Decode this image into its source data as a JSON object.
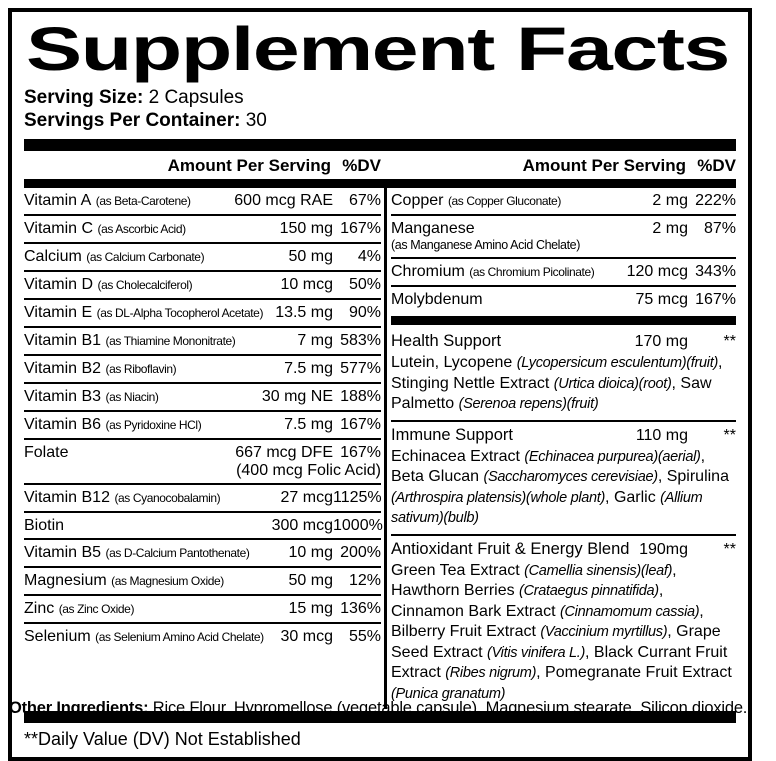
{
  "title": "Supplement Facts",
  "serving_size": {
    "label": "Serving Size:",
    "value": " 2 Capsules"
  },
  "servings_per_container": {
    "label": "Servings Per Container:",
    "value": " 30"
  },
  "column_header": {
    "amount": "Amount Per Serving",
    "dv": "%DV"
  },
  "left_column": {
    "rows": [
      {
        "name": "Vitamin A",
        "paren": "(as Beta-Carotene)",
        "amount": "600 mcg RAE",
        "dv": "67%"
      },
      {
        "name": "Vitamin C",
        "paren": "(as Ascorbic Acid)",
        "amount": "150 mg",
        "dv": "167%"
      },
      {
        "name": "Calcium",
        "paren": "(as Calcium Carbonate)",
        "amount": "50 mg",
        "dv": "4%"
      },
      {
        "name": "Vitamin D",
        "paren": "(as Cholecalciferol)",
        "amount": "10 mcg",
        "dv": "50%"
      },
      {
        "name": "Vitamin E",
        "paren": "(as DL-Alpha Tocopherol Acetate)",
        "amount": "13.5 mg",
        "dv": "90%"
      },
      {
        "name": "Vitamin B1",
        "paren": "(as Thiamine Mononitrate)",
        "amount": "7 mg",
        "dv": "583%"
      },
      {
        "name": "Vitamin B2",
        "paren": "(as Riboflavin)",
        "amount": "7.5 mg",
        "dv": "577%"
      },
      {
        "name": "Vitamin B3",
        "paren": "(as Niacin)",
        "amount": "30 mg NE",
        "dv": "188%"
      },
      {
        "name": "Vitamin B6",
        "paren": "(as Pyridoxine HCl)",
        "amount": "7.5 mg",
        "dv": "167%"
      },
      {
        "name": "Folate",
        "amount": "667 mcg DFE",
        "amount2": "(400 mcg Folic Acid)",
        "dv": "167%"
      },
      {
        "name": "Vitamin B12",
        "paren": "(as Cyanocobalamin)",
        "amount": "27 mcg",
        "dv": "1125%"
      },
      {
        "name": "Biotin",
        "amount": "300 mcg",
        "dv": "1000%"
      },
      {
        "name": "Vitamin B5",
        "paren": "(as D-Calcium Pantothenate)",
        "amount": "10 mg",
        "dv": "200%"
      },
      {
        "name": "Magnesium",
        "paren": "(as Magnesium Oxide)",
        "amount": "50 mg",
        "dv": "12%"
      },
      {
        "name": "Zinc",
        "paren": "(as Zinc Oxide)",
        "amount": "15 mg",
        "dv": "136%"
      },
      {
        "name": "Selenium",
        "paren": "(as Selenium Amino Acid Chelate)",
        "amount": "30 mcg",
        "dv": "55%"
      }
    ]
  },
  "right_column": {
    "rows": [
      {
        "name": "Copper",
        "paren": "(as Copper Gluconate)",
        "amount": "2 mg",
        "dv": "222%"
      },
      {
        "name": "Manganese",
        "paren_below": "(as Manganese Amino Acid Chelate)",
        "amount": "2 mg",
        "dv": "87%"
      },
      {
        "name": "Chromium",
        "paren": "(as Chromium Picolinate)",
        "amount": "120 mcg",
        "dv": "343%"
      },
      {
        "name": "Molybdenum",
        "amount": "75 mcg",
        "dv": "167%"
      }
    ],
    "blends": [
      {
        "name": "Health Support",
        "amount": "170 mg",
        "dv": "**",
        "ingredients": [
          {
            "t": "Lutein, Lycopene "
          },
          {
            "t": "(Lycopersicum esculentum)(fruit)",
            "i": true
          },
          {
            "t": ", Stinging Nettle Extract "
          },
          {
            "t": "(Urtica dioica)(root)",
            "i": true
          },
          {
            "t": ", Saw Palmetto "
          },
          {
            "t": "(Serenoa repens)(fruit)",
            "i": true
          }
        ]
      },
      {
        "name": "Immune Support",
        "amount": "110 mg",
        "dv": "**",
        "ingredients": [
          {
            "t": "Echinacea Extract "
          },
          {
            "t": "(Echinacea purpurea)(aerial)",
            "i": true
          },
          {
            "t": ", Beta Glucan "
          },
          {
            "t": "(Saccharomyces cerevisiae)",
            "i": true
          },
          {
            "t": ", Spirulina "
          },
          {
            "t": "(Arthrospira platensis)(whole plant)",
            "i": true
          },
          {
            "t": ", Garlic "
          },
          {
            "t": "(Allium sativum)(bulb)",
            "i": true
          }
        ]
      },
      {
        "name": "Antioxidant Fruit & Energy Blend",
        "amount": "190mg",
        "dv": "**",
        "ingredients": [
          {
            "t": "Green Tea Extract "
          },
          {
            "t": "(Camellia sinensis)(leaf)",
            "i": true
          },
          {
            "t": ", Hawthorn Berries "
          },
          {
            "t": "(Crataegus pinnatifida)",
            "i": true
          },
          {
            "t": ", Cinnamon Bark Extract "
          },
          {
            "t": "(Cinnamomum cassia)",
            "i": true
          },
          {
            "t": ", Bilberry Fruit Extract "
          },
          {
            "t": "(Vaccinium myrtillus)",
            "i": true
          },
          {
            "t": ", Grape Seed Extract "
          },
          {
            "t": "(Vitis vinifera L.)",
            "i": true
          },
          {
            "t": ", Black Currant Fruit Extract "
          },
          {
            "t": "(Ribes nigrum)",
            "i": true
          },
          {
            "t": ", Pomegranate Fruit Extract "
          },
          {
            "t": "(Punica granatum)",
            "i": true
          }
        ]
      }
    ]
  },
  "footnote": "**Daily Value (DV) Not Established",
  "other_ingredients": {
    "label": "Other Ingredients:",
    "value": " Rice Flour, Hypromellose (vegetable capsule), Magnesium stearate, Silicon dioxide."
  },
  "colors": {
    "ink": "#000000",
    "paper": "#ffffff"
  }
}
